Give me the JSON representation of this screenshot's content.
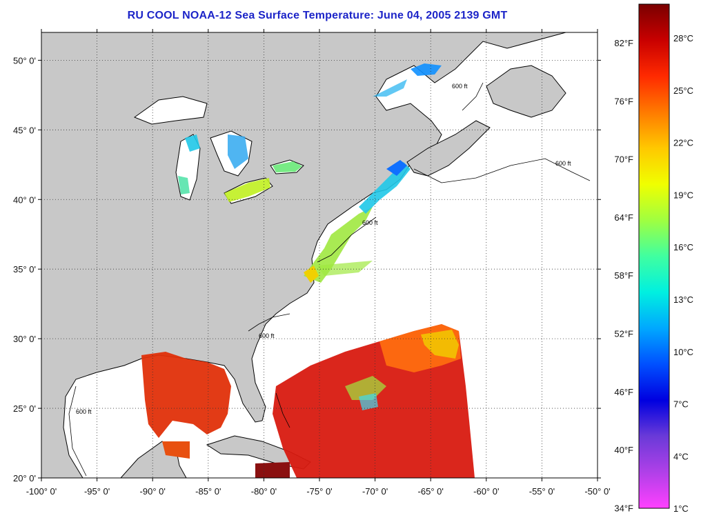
{
  "title": "RU COOL  NOAA-12  Sea Surface Temperature:  June 04, 2005 2139 GMT",
  "map": {
    "lon_range": [
      -100,
      -50
    ],
    "lat_range": [
      20,
      52
    ],
    "lat_ticks": [
      {
        "value": 50,
        "label": "50° 0'"
      },
      {
        "value": 45,
        "label": "45° 0'"
      },
      {
        "value": 40,
        "label": "40° 0'"
      },
      {
        "value": 35,
        "label": "35° 0'"
      },
      {
        "value": 30,
        "label": "30° 0'"
      },
      {
        "value": 25,
        "label": "25° 0'"
      },
      {
        "value": 20,
        "label": "20° 0'"
      }
    ],
    "lon_ticks": [
      {
        "value": -100,
        "label": "-100° 0'"
      },
      {
        "value": -95,
        "label": "-95° 0'"
      },
      {
        "value": -90,
        "label": "-90° 0'"
      },
      {
        "value": -85,
        "label": "-85° 0'"
      },
      {
        "value": -80,
        "label": "-80° 0'"
      },
      {
        "value": -75,
        "label": "-75° 0'"
      },
      {
        "value": -70,
        "label": "-70° 0'"
      },
      {
        "value": -65,
        "label": "-65° 0'"
      },
      {
        "value": -60,
        "label": "-60° 0'"
      },
      {
        "value": -55,
        "label": "-55° 0'"
      },
      {
        "value": -50,
        "label": "-50° 0'"
      }
    ],
    "contour_label": "600 ft",
    "colors": {
      "land": "#c8c8c8",
      "water": "#ffffff",
      "grid": "#333333"
    }
  },
  "colorbar": {
    "fahrenheit_labels": [
      "82°F",
      "76°F",
      "70°F",
      "64°F",
      "58°F",
      "52°F",
      "46°F",
      "40°F",
      "34°F"
    ],
    "celsius_labels": [
      "28°C",
      "25°C",
      "22°C",
      "19°C",
      "16°C",
      "13°C",
      "10°C",
      "7°C",
      "4°C",
      "1°C"
    ],
    "gradient_stops": [
      "#7a0000",
      "#c80000",
      "#ff2a00",
      "#ff7a00",
      "#ffc800",
      "#f0ff00",
      "#a0ff40",
      "#40ffa0",
      "#00f0e0",
      "#00a8ff",
      "#0050ff",
      "#0000e0",
      "#6a3ad8",
      "#b040e8",
      "#ff40ff"
    ]
  }
}
